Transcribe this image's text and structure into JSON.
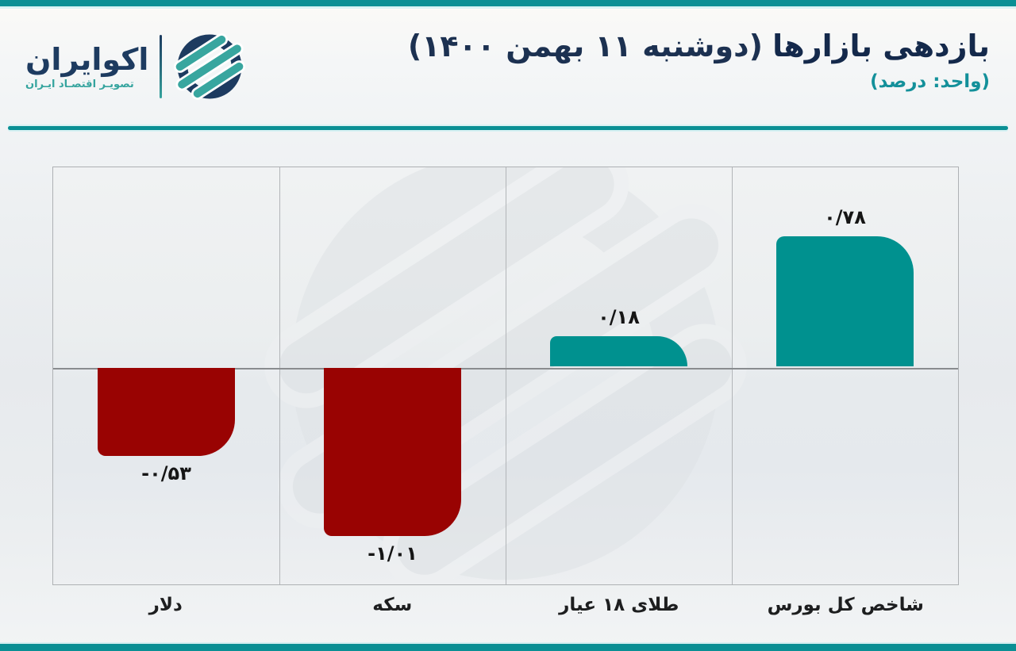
{
  "brand": {
    "name": "اکوایران",
    "tagline": "تصویـر اقتصـاد ایـران",
    "navy": "#1d3b60",
    "teal": "#35a49e"
  },
  "header": {
    "title_bold": "بازدهی بازارها",
    "title_date": "(دوشنبه ۱۱ بهمن ۱۴۰۰)",
    "unit_note": "(واحد: درصد)",
    "title_color": "#14294b",
    "unit_note_color": "#13909a",
    "accent_line_color": "#0a8f94"
  },
  "chart_data": {
    "type": "bar",
    "title": "بازدهی بازارها (دوشنبه ۱۱ بهمن ۱۴۰۰)",
    "subtitle": "(واحد: درصد)",
    "unit": "درصد",
    "direction": "rtl",
    "categories": [
      "شاخص کل بورس",
      "طلای ۱۸ عیار",
      "سکه",
      "دلار"
    ],
    "values": [
      0.78,
      0.18,
      -1.01,
      -0.53
    ],
    "value_labels": [
      "۰/۷۸",
      "۰/۱۸",
      "-۱/۰۱",
      "-۰/۵۳"
    ],
    "positive_color": "#00918f",
    "negative_color": "#990302",
    "baseline": 0,
    "ylim": [
      -1.2,
      1.2
    ],
    "grid": "vertical category dividers + zero baseline",
    "legend": "none",
    "watermark": "ecoiran-logo"
  },
  "footer": {
    "strip_color": "#0a8f94"
  }
}
